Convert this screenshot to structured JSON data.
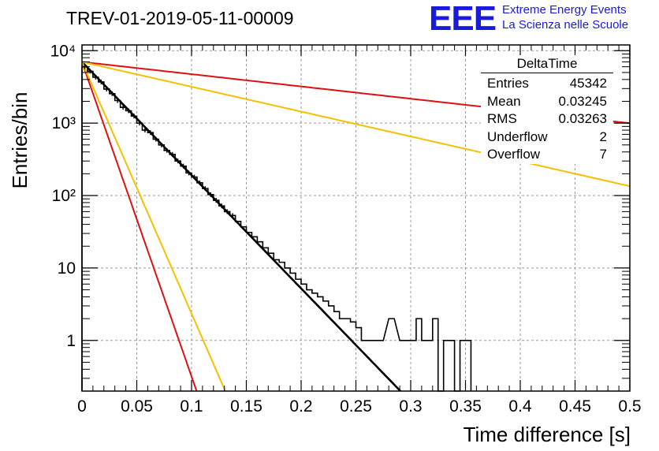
{
  "title": "TREV-01-2019-05-11-00009",
  "logo": {
    "text": "EEE",
    "line1": "Extreme Energy Events",
    "line2": "La Scienza nelle Scuole",
    "color": "#1a1adc"
  },
  "stats_box": {
    "name": "DeltaTime",
    "rows": [
      {
        "label": "Entries",
        "value": "45342"
      },
      {
        "label": "Mean",
        "value": "0.03245"
      },
      {
        "label": "RMS",
        "value": "0.03263"
      },
      {
        "label": "Underflow",
        "value": "2"
      },
      {
        "label": "Overflow",
        "value": "7"
      }
    ]
  },
  "chart_data": {
    "type": "line",
    "title": "TREV-01-2019-05-11-00009",
    "xlabel": "Time difference [s]",
    "ylabel": "Entries/bin",
    "xlim": [
      0,
      0.5
    ],
    "ylim": [
      0.2,
      12000
    ],
    "yscale": "log",
    "grid": true,
    "x_ticks": [
      0,
      0.05,
      0.1,
      0.15,
      0.2,
      0.25,
      0.3,
      0.35,
      0.4,
      0.45,
      0.5
    ],
    "x_tick_labels": [
      "0",
      "0.05",
      "0.1",
      "0.15",
      "0.2",
      "0.25",
      "0.3",
      "0.35",
      "0.4",
      "0.45",
      "0.5"
    ],
    "y_ticks": [
      1,
      10,
      100,
      1000,
      10000
    ],
    "y_tick_labels": [
      "1",
      "10",
      "10²",
      "10³",
      "10⁴"
    ],
    "histogram": {
      "bin_width": 0.005,
      "color": "#000000",
      "bins": [
        [
          0.0,
          6000
        ],
        [
          0.005,
          5200
        ],
        [
          0.01,
          4300
        ],
        [
          0.015,
          3700
        ],
        [
          0.02,
          2950
        ],
        [
          0.025,
          2550
        ],
        [
          0.03,
          2050
        ],
        [
          0.035,
          1650
        ],
        [
          0.04,
          1480
        ],
        [
          0.045,
          1250
        ],
        [
          0.05,
          1000
        ],
        [
          0.055,
          800
        ],
        [
          0.06,
          740
        ],
        [
          0.065,
          600
        ],
        [
          0.07,
          500
        ],
        [
          0.075,
          420
        ],
        [
          0.08,
          370
        ],
        [
          0.085,
          300
        ],
        [
          0.09,
          255
        ],
        [
          0.095,
          205
        ],
        [
          0.1,
          180
        ],
        [
          0.105,
          150
        ],
        [
          0.11,
          125
        ],
        [
          0.115,
          103
        ],
        [
          0.12,
          86
        ],
        [
          0.125,
          72
        ],
        [
          0.13,
          60
        ],
        [
          0.135,
          53
        ],
        [
          0.14,
          44
        ],
        [
          0.145,
          37
        ],
        [
          0.15,
          31
        ],
        [
          0.155,
          27
        ],
        [
          0.16,
          23
        ],
        [
          0.165,
          19
        ],
        [
          0.17,
          16
        ],
        [
          0.175,
          13
        ],
        [
          0.18,
          12
        ],
        [
          0.185,
          10
        ],
        [
          0.19,
          8.5
        ],
        [
          0.195,
          7
        ],
        [
          0.2,
          6
        ],
        [
          0.205,
          5
        ],
        [
          0.21,
          4.5
        ],
        [
          0.215,
          4
        ],
        [
          0.22,
          3.5
        ],
        [
          0.225,
          3
        ],
        [
          0.23,
          2.5
        ],
        [
          0.235,
          2
        ],
        [
          0.24,
          2
        ],
        [
          0.245,
          1.8
        ],
        [
          0.25,
          1.5
        ],
        [
          0.255,
          1
        ],
        [
          0.26,
          1
        ],
        [
          0.265,
          1
        ],
        [
          0.27,
          1
        ],
        [
          0.28,
          2
        ],
        [
          0.29,
          1
        ],
        [
          0.3,
          1
        ],
        [
          0.305,
          2
        ],
        [
          0.31,
          1
        ],
        [
          0.315,
          1
        ],
        [
          0.32,
          2
        ],
        [
          0.325,
          0
        ],
        [
          0.33,
          1
        ],
        [
          0.335,
          1
        ],
        [
          0.34,
          0
        ],
        [
          0.345,
          1
        ],
        [
          0.35,
          1
        ]
      ]
    },
    "series": [
      {
        "color": "#000000",
        "amplitude": 7000,
        "slope": -36.0,
        "x_range": [
          0,
          0.35
        ]
      },
      {
        "color": "#dd1111",
        "amplitude": 7000,
        "slope": -100.0,
        "x_range": [
          0,
          0.2
        ]
      },
      {
        "color": "#f4c000",
        "amplitude": 7000,
        "slope": -80.0,
        "x_range": [
          0,
          0.2
        ]
      },
      {
        "color": "#dd1111",
        "amplitude": 7000,
        "slope": -3.9,
        "x_range": [
          0,
          0.5
        ]
      },
      {
        "color": "#f4c000",
        "amplitude": 7000,
        "slope": -7.9,
        "x_range": [
          0,
          0.5
        ]
      }
    ]
  }
}
